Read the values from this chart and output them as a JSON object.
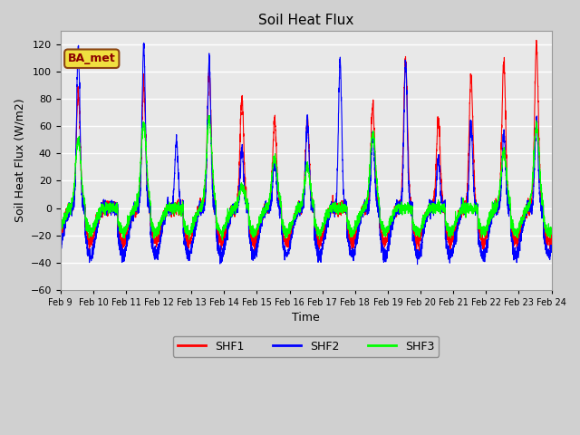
{
  "title": "Soil Heat Flux",
  "xlabel": "Time",
  "ylabel": "Soil Heat Flux (W/m2)",
  "ylim": [
    -60,
    130
  ],
  "yticks": [
    -60,
    -40,
    -20,
    0,
    20,
    40,
    60,
    80,
    100,
    120
  ],
  "colors": {
    "SHF1": "red",
    "SHF2": "blue",
    "SHF3": "lime"
  },
  "annotation": "BA_met",
  "background_color": "#d0d0d0",
  "plot_bg_color": "#e8e8e8",
  "grid_color": "white",
  "x_tick_labels": [
    "Feb 9",
    "Feb 10",
    "Feb 11",
    "Feb 12",
    "Feb 13",
    "Feb 14",
    "Feb 15",
    "Feb 16",
    "Feb 17",
    "Feb 18",
    "Feb 19",
    "Feb 20",
    "Feb 21",
    "Feb 22",
    "Feb 23",
    "Feb 24"
  ],
  "day_peaks_shf1": [
    85,
    0,
    90,
    0,
    100,
    80,
    65,
    65,
    0,
    75,
    108,
    64,
    96,
    106,
    118,
    0
  ],
  "day_peaks_shf2": [
    116,
    0,
    120,
    49,
    108,
    44,
    35,
    65,
    107,
    55,
    107,
    35,
    62,
    55,
    65,
    0
  ],
  "day_peaks_shf3": [
    50,
    0,
    62,
    0,
    65,
    16,
    37,
    30,
    0,
    55,
    0,
    0,
    0,
    42,
    60,
    0
  ],
  "night_trough_shf1": -25,
  "night_trough_shf2": -35,
  "night_trough_shf3": -18,
  "figsize": [
    6.4,
    4.8
  ],
  "dpi": 100
}
